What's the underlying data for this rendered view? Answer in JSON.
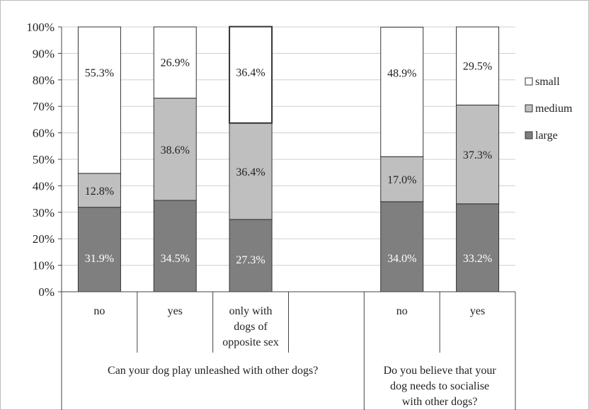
{
  "chart_data": {
    "type": "bar",
    "stacked": true,
    "title": "",
    "xlabel": "",
    "ylabel": "",
    "ylim": [
      0,
      100
    ],
    "yticks": [
      "0%",
      "10%",
      "20%",
      "30%",
      "40%",
      "50%",
      "60%",
      "70%",
      "80%",
      "90%",
      "100%"
    ],
    "grid": true,
    "legend_position": "right",
    "categories": [
      {
        "label_lines": [
          "no"
        ],
        "slot": 0
      },
      {
        "label_lines": [
          "yes"
        ],
        "slot": 1
      },
      {
        "label_lines": [
          "only with",
          "dogs of",
          "opposite sex"
        ],
        "slot": 2
      },
      {
        "label_lines": [],
        "slot": 3
      },
      {
        "label_lines": [
          "no"
        ],
        "slot": 4
      },
      {
        "label_lines": [
          "yes"
        ],
        "slot": 5
      }
    ],
    "groups": [
      {
        "label_lines": [
          "Can your dog play unleashed with other dogs?"
        ],
        "slots": [
          0,
          1,
          2,
          3
        ]
      },
      {
        "label_lines": [
          "Do you believe that your",
          "dog needs to socialise",
          "with other dogs?"
        ],
        "slots": [
          4,
          5
        ]
      }
    ],
    "series": [
      {
        "name": "large",
        "color": "#7f7f7f",
        "label_color": "#ffffff",
        "values": [
          31.9,
          34.5,
          27.3,
          null,
          34.0,
          33.2
        ],
        "labels": [
          "31.9%",
          "34.5%",
          "27.3%",
          "",
          "34.0%",
          "33.2%"
        ]
      },
      {
        "name": "medium",
        "color": "#bfbfbf",
        "label_color": "#222222",
        "values": [
          12.8,
          38.6,
          36.4,
          null,
          17.0,
          37.3
        ],
        "labels": [
          "12.8%",
          "38.6%",
          "36.4%",
          "",
          "17.0%",
          "37.3%"
        ]
      },
      {
        "name": "small",
        "color": "#ffffff",
        "label_color": "#222222",
        "values": [
          55.3,
          26.9,
          36.4,
          null,
          48.9,
          29.5
        ],
        "labels": [
          "55.3%",
          "26.9%",
          "36.4%",
          "",
          "48.9%",
          "29.5%"
        ]
      }
    ],
    "legend": [
      {
        "name": "small",
        "color": "#ffffff"
      },
      {
        "name": "medium",
        "color": "#bfbfbf"
      },
      {
        "name": "large",
        "color": "#7f7f7f"
      }
    ]
  }
}
